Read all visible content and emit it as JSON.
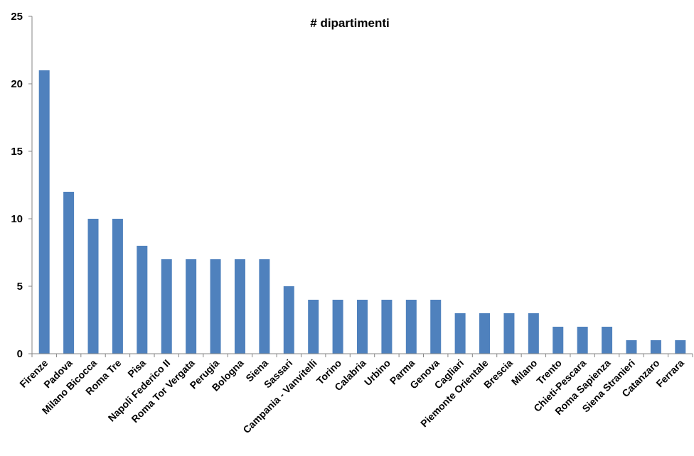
{
  "chart_data": {
    "type": "bar",
    "title": "# dipartimenti",
    "categories": [
      "Firenze",
      "Padova",
      "Milano Bicocca",
      "Roma Tre",
      "Pisa",
      "Napoli Federico II",
      "Roma Tor Vergata",
      "Perugia",
      "Bologna",
      "Siena",
      "Sassari",
      "Campania - Vanvitelli",
      "Torino",
      "Calabria",
      "Urbino",
      "Parma",
      "Genova",
      "Cagliari",
      "Piemonte Orientale",
      "Brescia",
      "Milano",
      "Trento",
      "Chieti-Pescara",
      "Roma Sapienza",
      "Siena Stranieri",
      "Catanzaro",
      "Ferrara"
    ],
    "values": [
      21,
      12,
      10,
      10,
      8,
      7,
      7,
      7,
      7,
      7,
      5,
      4,
      4,
      4,
      4,
      4,
      4,
      3,
      3,
      3,
      3,
      2,
      2,
      2,
      1,
      1,
      1
    ],
    "ylim": [
      0,
      25
    ],
    "yticks": [
      0,
      5,
      10,
      15,
      20,
      25
    ],
    "grid": false,
    "legend": "none",
    "bar_color": "#4f81bd",
    "axis_color": "#868686"
  }
}
